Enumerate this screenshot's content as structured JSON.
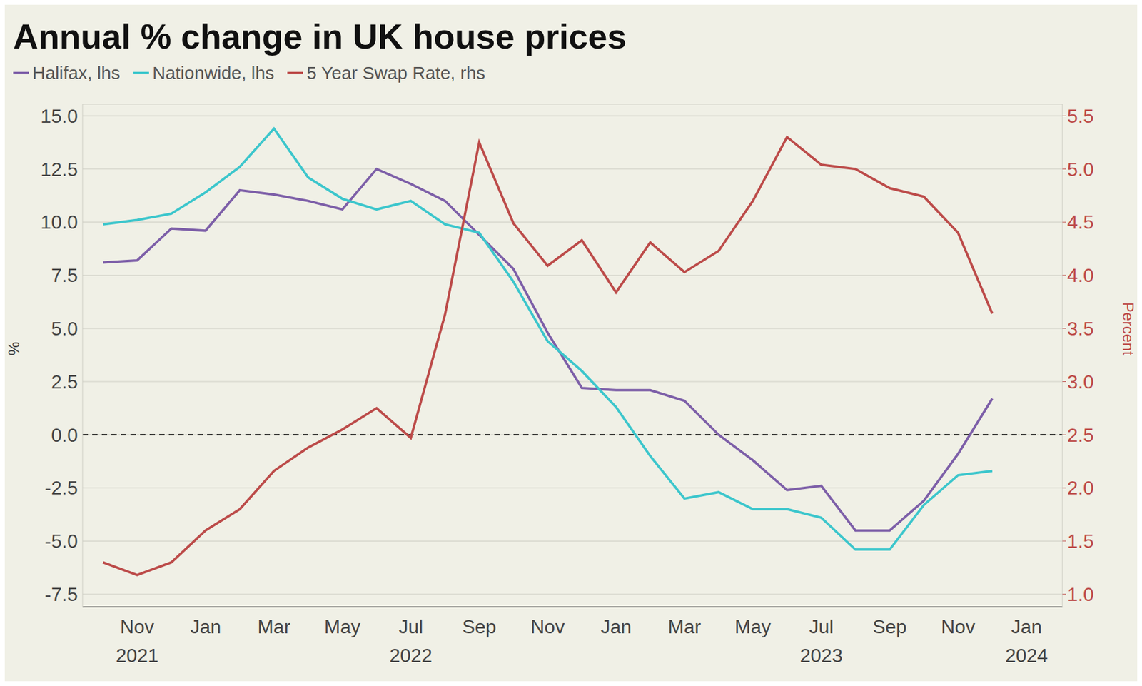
{
  "chart_data": {
    "type": "line",
    "title": "Annual % change in UK house prices",
    "y_label": "%",
    "y2_label": "Percent",
    "categories": [
      null,
      "Nov\n2021",
      null,
      "Jan",
      null,
      "Mar",
      null,
      "May",
      null,
      "Jul\n2022",
      null,
      "Sep",
      null,
      "Nov",
      null,
      "Jan",
      null,
      "Mar",
      null,
      "May",
      null,
      "Jul\n2023",
      null,
      "Sep",
      null,
      "Nov",
      null,
      "Jan\n2024"
    ],
    "series": [
      {
        "name": "Halifax, lhs",
        "color": "#7d5fa8",
        "axis": "y",
        "values": [
          8.1,
          8.2,
          9.7,
          9.6,
          11.5,
          11.3,
          11.0,
          10.6,
          12.5,
          11.8,
          11.0,
          9.4,
          7.8,
          4.8,
          2.2,
          2.1,
          2.1,
          1.6,
          0.0,
          -1.2,
          -2.6,
          -2.4,
          -4.5,
          -4.5,
          -3.1,
          -0.9,
          1.7,
          null
        ]
      },
      {
        "name": "Nationwide, lhs",
        "color": "#3cc6cc",
        "axis": "y",
        "values": [
          9.9,
          10.1,
          10.4,
          11.4,
          12.6,
          14.4,
          12.1,
          11.1,
          10.6,
          11.0,
          9.9,
          9.5,
          7.2,
          4.4,
          3.0,
          1.3,
          -1.0,
          -3.0,
          -2.7,
          -3.5,
          -3.5,
          -3.9,
          -5.4,
          -5.4,
          -3.3,
          -1.9,
          -1.7,
          null
        ]
      },
      {
        "name": "5 Year Swap Rate, rhs",
        "color": "#bc4b49",
        "axis": "y2",
        "values": [
          1.3,
          1.18,
          1.3,
          1.6,
          1.8,
          2.16,
          2.38,
          2.55,
          2.75,
          2.47,
          3.63,
          5.25,
          4.49,
          4.09,
          4.33,
          3.84,
          4.31,
          4.03,
          4.23,
          4.7,
          5.3,
          5.04,
          5.0,
          4.82,
          4.74,
          4.4,
          3.64,
          null
        ]
      }
    ],
    "ylim": [
      -8.1,
      15.55
    ],
    "yticks": [
      {
        "value": 15,
        "label": "15.0"
      },
      12.5,
      {
        "value": 10,
        "label": "10.0"
      },
      7.5,
      {
        "value": 5,
        "label": "5.0"
      },
      2.5,
      {
        "value": 0,
        "label": "0.0"
      },
      -2.5,
      {
        "value": -5,
        "label": "-5.0"
      },
      -7.5
    ],
    "y2lim": [
      0.88,
      5.61
    ],
    "y2ticks": [
      5.5,
      {
        "value": 5,
        "label": "5.0"
      },
      4.5,
      {
        "value": 4,
        "label": "4.0"
      },
      3.5,
      {
        "value": 3,
        "label": "3.0"
      },
      2.5,
      {
        "value": 2,
        "label": "2.0"
      },
      1.5,
      {
        "value": 1,
        "label": "1.0"
      }
    ],
    "reference_lines": [
      {
        "y": 0,
        "line_style": "dashed"
      }
    ],
    "grid": true,
    "legend": "top-left"
  }
}
